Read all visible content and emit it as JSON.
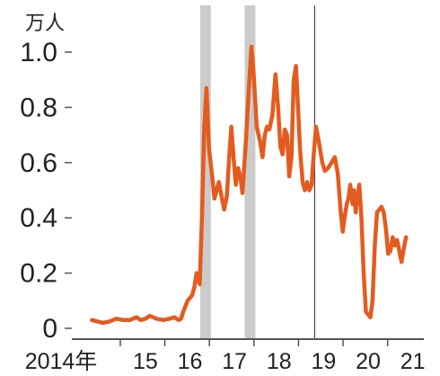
{
  "chart_data": {
    "type": "line",
    "unit_label": "万人",
    "y_ticks": [
      {
        "value": 0.0,
        "label": "0"
      },
      {
        "value": 0.2,
        "label": "0.2"
      },
      {
        "value": 0.4,
        "label": "0.4"
      },
      {
        "value": 0.6,
        "label": "0.6"
      },
      {
        "value": 0.8,
        "label": "0.8"
      },
      {
        "value": 1.0,
        "label": "1.0"
      }
    ],
    "x_ticks": [
      {
        "value": 2014.0,
        "label": "2014年"
      },
      {
        "value": 2015.0,
        "label": "15"
      },
      {
        "value": 2016.0,
        "label": "16"
      },
      {
        "value": 2017.0,
        "label": "17"
      },
      {
        "value": 2018.0,
        "label": "18"
      },
      {
        "value": 2019.0,
        "label": "19"
      },
      {
        "value": 2020.0,
        "label": "20"
      },
      {
        "value": 2021.0,
        "label": "21"
      }
    ],
    "xlim": [
      2014.0,
      2021.45
    ],
    "ylim": [
      0,
      1.08
    ],
    "grid": false,
    "series_color": "#e35c1f",
    "shaded_color": "#cbcbcb",
    "shaded_periods": [
      [
        2016.43,
        2016.67
      ],
      [
        2017.43,
        2017.67
      ]
    ],
    "reference_lines": [
      2019.0
    ],
    "series": [
      {
        "x": [
          2014.0,
          2014.12,
          2014.25,
          2014.4,
          2014.55,
          2014.7,
          2014.85,
          2015.0,
          2015.1,
          2015.2,
          2015.3,
          2015.45,
          2015.6,
          2015.75,
          2015.85,
          2015.95,
          2016.0,
          2016.05,
          2016.1,
          2016.15,
          2016.2,
          2016.25,
          2016.3,
          2016.35,
          2016.42,
          2016.47,
          2016.52,
          2016.57,
          2016.63,
          2016.7,
          2016.75,
          2016.8,
          2016.85,
          2016.92,
          2016.97,
          2017.03,
          2017.08,
          2017.13,
          2017.18,
          2017.23,
          2017.28,
          2017.33,
          2017.38,
          2017.45,
          2017.52,
          2017.58,
          2017.63,
          2017.7,
          2017.77,
          2017.83,
          2017.88,
          2017.93,
          2017.98,
          2018.05,
          2018.12,
          2018.18,
          2018.23,
          2018.28,
          2018.33,
          2018.38,
          2018.43,
          2018.48,
          2018.53,
          2018.58,
          2018.62,
          2018.67,
          2018.73,
          2018.78,
          2018.83,
          2018.88,
          2018.93,
          2018.98,
          2019.03,
          2019.1,
          2019.17,
          2019.23,
          2019.3,
          2019.38,
          2019.45,
          2019.52,
          2019.58,
          2019.63,
          2019.67,
          2019.72,
          2019.76,
          2019.8,
          2019.85,
          2019.88,
          2019.92,
          2019.96,
          2020.0,
          2020.05,
          2020.1,
          2020.15,
          2020.2,
          2020.25,
          2020.3,
          2020.35,
          2020.4,
          2020.45,
          2020.5,
          2020.55,
          2020.6,
          2020.65,
          2020.7,
          2020.75,
          2020.8,
          2020.85,
          2020.9,
          2020.95,
          2021.0,
          2021.05
        ],
        "y": [
          0.03,
          0.025,
          0.02,
          0.025,
          0.035,
          0.03,
          0.03,
          0.04,
          0.03,
          0.035,
          0.045,
          0.035,
          0.03,
          0.035,
          0.04,
          0.03,
          0.035,
          0.06,
          0.08,
          0.1,
          0.11,
          0.12,
          0.15,
          0.2,
          0.16,
          0.4,
          0.72,
          0.87,
          0.65,
          0.55,
          0.47,
          0.5,
          0.53,
          0.47,
          0.43,
          0.48,
          0.62,
          0.73,
          0.62,
          0.52,
          0.58,
          0.55,
          0.49,
          0.66,
          0.86,
          1.02,
          0.92,
          0.73,
          0.68,
          0.62,
          0.7,
          0.73,
          0.72,
          0.77,
          0.92,
          0.8,
          0.66,
          0.63,
          0.72,
          0.7,
          0.55,
          0.62,
          0.9,
          0.95,
          0.82,
          0.65,
          0.53,
          0.5,
          0.53,
          0.5,
          0.52,
          0.63,
          0.73,
          0.67,
          0.6,
          0.57,
          0.58,
          0.6,
          0.62,
          0.56,
          0.43,
          0.35,
          0.4,
          0.45,
          0.47,
          0.52,
          0.45,
          0.5,
          0.42,
          0.48,
          0.52,
          0.4,
          0.2,
          0.06,
          0.05,
          0.04,
          0.1,
          0.3,
          0.42,
          0.43,
          0.44,
          0.42,
          0.36,
          0.27,
          0.28,
          0.33,
          0.3,
          0.32,
          0.28,
          0.24,
          0.29,
          0.33
        ]
      }
    ]
  }
}
